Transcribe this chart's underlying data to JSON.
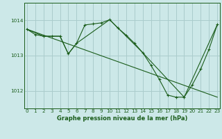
{
  "bg_color": "#cce8e8",
  "grid_color": "#aacccc",
  "line_color": "#1a5c1a",
  "title": "Graphe pression niveau de la mer (hPa)",
  "xlabel_ticks": [
    0,
    1,
    2,
    3,
    4,
    5,
    6,
    7,
    8,
    9,
    10,
    11,
    12,
    13,
    14,
    15,
    16,
    17,
    18,
    19,
    20,
    21,
    22,
    23
  ],
  "yticks": [
    1012,
    1013,
    1014
  ],
  "ylim": [
    1011.5,
    1014.5
  ],
  "xlim": [
    -0.3,
    23.3
  ],
  "curve1_x": [
    0,
    1,
    2,
    3,
    4,
    5,
    6,
    7,
    8,
    9,
    10,
    11,
    12,
    13,
    14,
    15,
    16,
    17,
    18,
    19,
    20,
    21,
    22,
    23
  ],
  "curve1_y": [
    1013.75,
    1013.6,
    1013.55,
    1013.55,
    1013.55,
    1013.05,
    1013.35,
    1013.87,
    1013.9,
    1013.93,
    1014.02,
    1013.78,
    1013.58,
    1013.35,
    1013.08,
    1012.72,
    1012.32,
    1011.88,
    1011.82,
    1011.82,
    1012.18,
    1012.62,
    1013.18,
    1013.88
  ],
  "curve2_x": [
    0,
    2,
    3,
    4,
    5,
    6,
    10,
    14,
    19,
    23
  ],
  "curve2_y": [
    1013.75,
    1013.55,
    1013.55,
    1013.55,
    1013.05,
    1013.35,
    1014.02,
    1013.08,
    1011.82,
    1013.88
  ],
  "curve3_x": [
    0,
    23
  ],
  "curve3_y": [
    1013.75,
    1011.82
  ]
}
